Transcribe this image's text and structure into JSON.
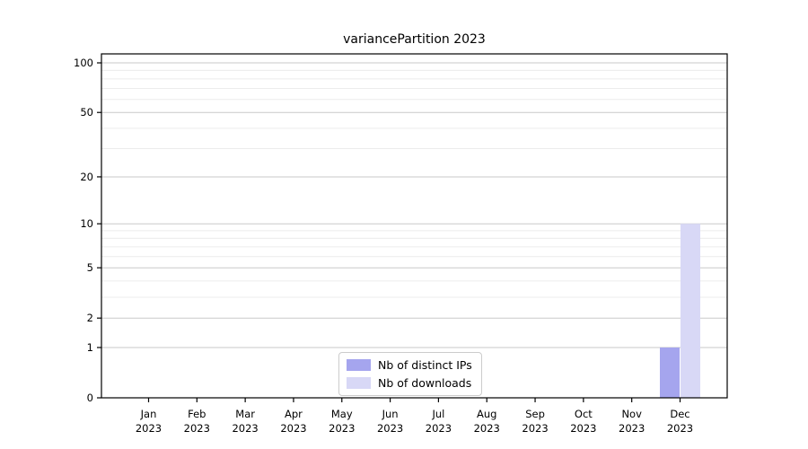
{
  "chart_data": {
    "type": "bar",
    "title": "variancePartition 2023",
    "categories": [
      "Jan",
      "Feb",
      "Mar",
      "Apr",
      "May",
      "Jun",
      "Jul",
      "Aug",
      "Sep",
      "Oct",
      "Nov",
      "Dec"
    ],
    "category_year": "2023",
    "series": [
      {
        "name": "Nb of distinct IPs",
        "color": "#a5a5ee",
        "values": [
          0,
          0,
          0,
          0,
          0,
          0,
          0,
          0,
          0,
          0,
          0,
          1
        ]
      },
      {
        "name": "Nb of downloads",
        "color": "#d8d8f6",
        "values": [
          0,
          0,
          0,
          0,
          0,
          0,
          0,
          0,
          0,
          0,
          0,
          10
        ]
      }
    ],
    "yscale": "log1p",
    "ylim": [
      0,
      100
    ],
    "yticks": [
      0,
      1,
      2,
      5,
      10,
      20,
      50,
      100
    ],
    "yticks_minor": [
      3,
      4,
      6,
      7,
      8,
      9,
      30,
      40,
      60,
      70,
      80,
      90
    ],
    "grid": "on",
    "legend_position": "bottom-center",
    "colors": {
      "axis_frame": "#000000",
      "major_grid": "#c9c9c9",
      "minor_grid": "#ececec",
      "tick_text": "#000000"
    }
  }
}
